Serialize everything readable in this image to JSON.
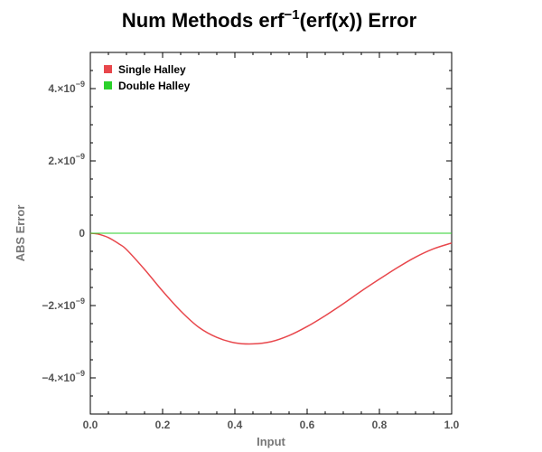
{
  "chart_data": {
    "type": "line",
    "title": {
      "base": "Num Methods erf",
      "superscript": "−1",
      "rest": "(erf(x)) Error"
    },
    "xlabel": "Input",
    "ylabel": "ABS Error",
    "xlim": [
      0,
      1
    ],
    "ylim": [
      -5e-09,
      5e-09
    ],
    "x_ticks": [
      {
        "value": 0.0,
        "label": "0.0"
      },
      {
        "value": 0.2,
        "label": "0.2"
      },
      {
        "value": 0.4,
        "label": "0.4"
      },
      {
        "value": 0.6,
        "label": "0.6"
      },
      {
        "value": 0.8,
        "label": "0.8"
      },
      {
        "value": 1.0,
        "label": "1.0"
      }
    ],
    "y_ticks": [
      {
        "value": 4e-09,
        "mantissa": "4.",
        "times": "×10",
        "exponent": "−9"
      },
      {
        "value": 2e-09,
        "mantissa": "2.",
        "times": "×10",
        "exponent": "−9"
      },
      {
        "value": 0,
        "mantissa": "0",
        "times": "",
        "exponent": ""
      },
      {
        "value": -2e-09,
        "mantissa": "−2.",
        "times": "×10",
        "exponent": "−9"
      },
      {
        "value": -4e-09,
        "mantissa": "−4.",
        "times": "×10",
        "exponent": "−9"
      }
    ],
    "legend_position": "top-left",
    "grid": false,
    "series": [
      {
        "name": "Single Halley",
        "color": "#e8474c",
        "x": [
          0.0,
          0.02,
          0.05,
          0.08,
          0.1,
          0.15,
          0.2,
          0.25,
          0.3,
          0.35,
          0.4,
          0.45,
          0.5,
          0.55,
          0.6,
          0.65,
          0.7,
          0.75,
          0.8,
          0.85,
          0.9,
          0.95,
          1.0
        ],
        "y": [
          0,
          -2e-11,
          -1.2e-10,
          -3e-10,
          -4.5e-10,
          -1e-09,
          -1.6e-09,
          -2.15e-09,
          -2.6e-09,
          -2.88e-09,
          -3.03e-09,
          -3.06e-09,
          -3e-09,
          -2.83e-09,
          -2.58e-09,
          -2.28e-09,
          -1.95e-09,
          -1.6e-09,
          -1.27e-09,
          -9.5e-10,
          -6.6e-10,
          -4.3e-10,
          -2.7e-10
        ]
      },
      {
        "name": "Double Halley",
        "color": "#2bd12b",
        "x": [
          0.0,
          1.0
        ],
        "y": [
          0,
          0
        ]
      }
    ]
  }
}
